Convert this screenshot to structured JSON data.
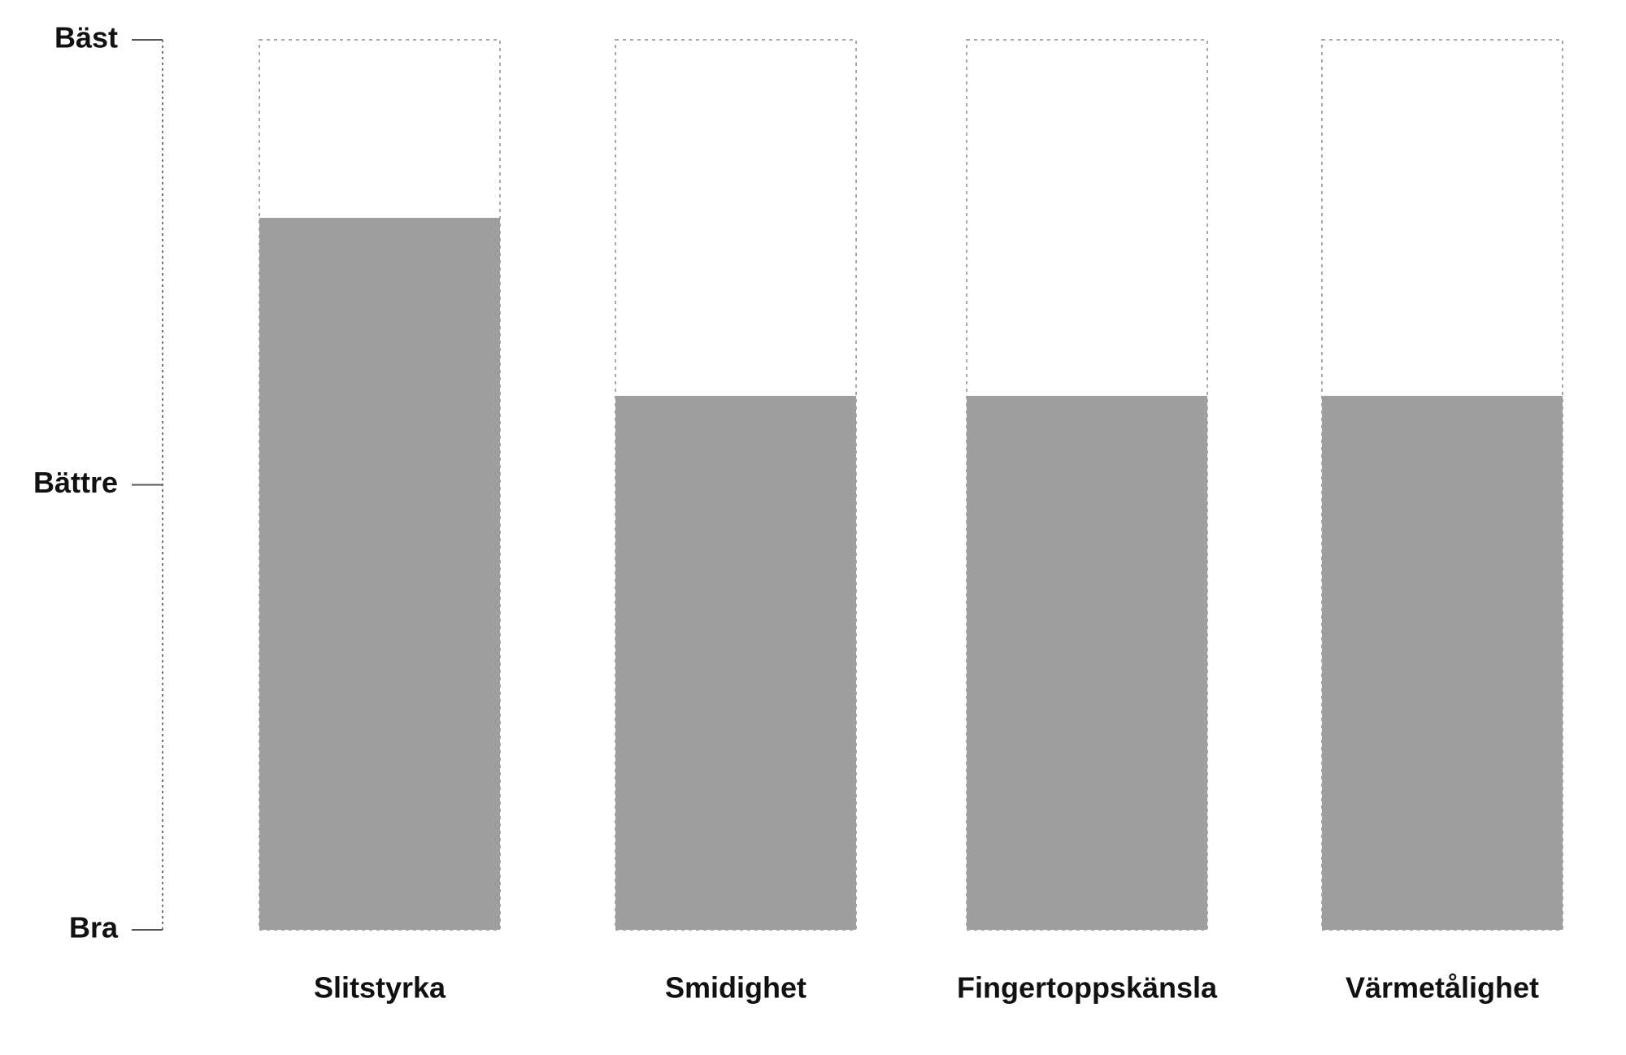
{
  "chart_data": {
    "type": "bar",
    "categories": [
      "Slitstyrka",
      "Smidighet",
      "Fingertoppskänsla",
      "Värmetålighet"
    ],
    "values": [
      1.6,
      1.2,
      1.2,
      1.2
    ],
    "color": "#9e9e9e",
    "ylim": [
      0,
      2
    ],
    "yticks": [
      {
        "value": 0,
        "label": "Bra"
      },
      {
        "value": 1,
        "label": "Bättre"
      },
      {
        "value": 2,
        "label": "Bäst"
      }
    ],
    "grid": false
  }
}
